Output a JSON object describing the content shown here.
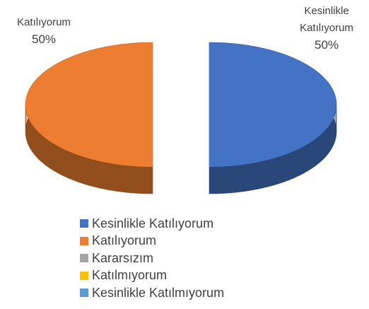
{
  "chart_data": {
    "type": "pie3d",
    "categories": [
      "Kesinlikle Katılıyorum",
      "Katılıyorum",
      "Kararsızım",
      "Katılmıyorum",
      "Kesinlikle Katılmıyorum"
    ],
    "values": [
      50,
      50,
      0,
      0,
      0
    ],
    "value_labels": [
      "50%",
      "50%",
      null,
      null,
      null
    ],
    "colors": [
      "#4472c4",
      "#ed7d31",
      "#a5a5a5",
      "#ffc000",
      "#5b9bd5"
    ],
    "legend": "bottom"
  }
}
